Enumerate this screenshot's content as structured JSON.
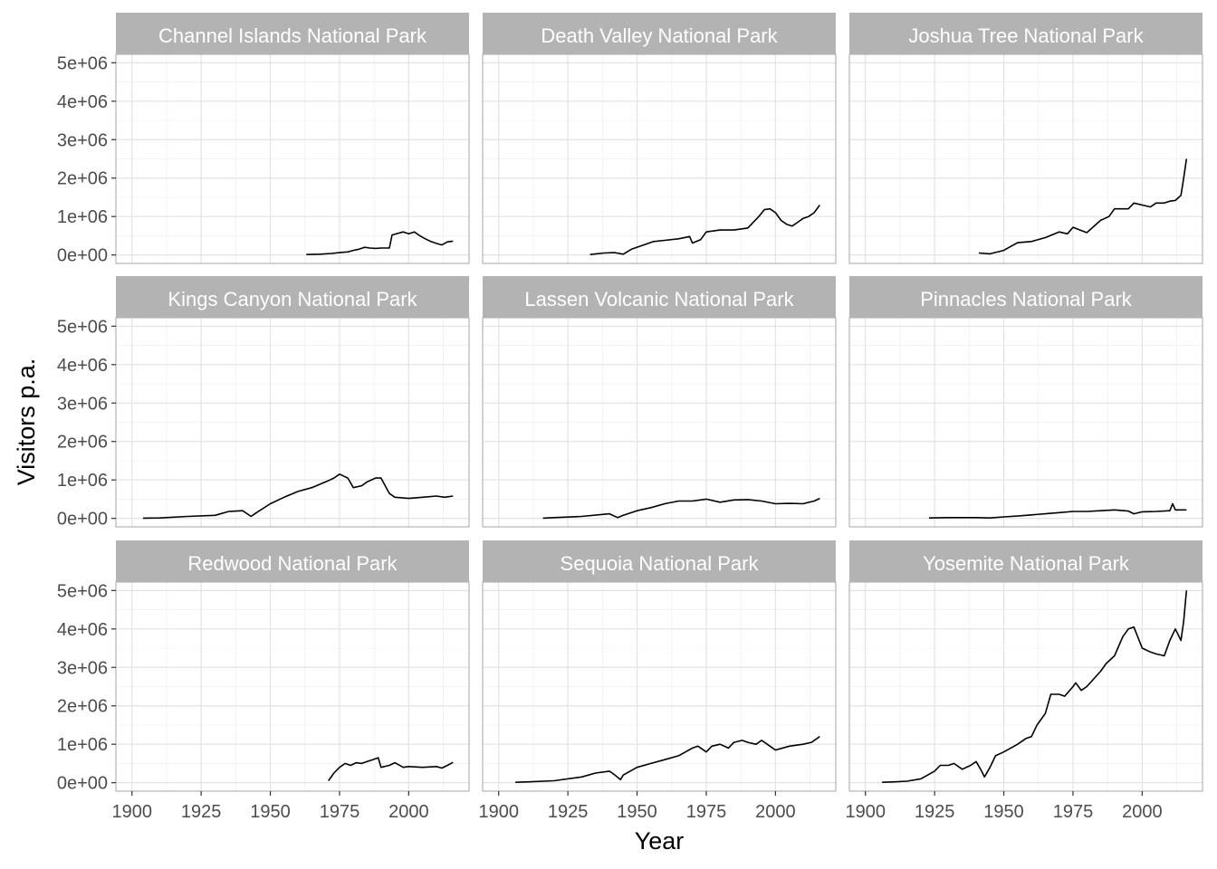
{
  "chart_data": {
    "type": "line",
    "layout": "facet-grid-3x3",
    "xlabel": "Year",
    "ylabel": "Visitors p.a.",
    "xlim": [
      1900,
      2016
    ],
    "ylim": [
      0,
      5000000
    ],
    "x_ticks": [
      1900,
      1925,
      1950,
      1975,
      2000
    ],
    "x_tick_labels": [
      "1900",
      "1925",
      "1950",
      "1975",
      "2000"
    ],
    "y_ticks": [
      0,
      1000000,
      2000000,
      3000000,
      4000000,
      5000000
    ],
    "y_tick_labels": [
      "0e+00",
      "1e+06",
      "2e+06",
      "3e+06",
      "4e+06",
      "5e+06"
    ],
    "grid": true,
    "line_color": "#000000",
    "strip_color": "#b3b3b3",
    "panels": [
      {
        "name": "Channel Islands National Park",
        "x": [
          1963,
          1968,
          1972,
          1975,
          1978,
          1980,
          1982,
          1984,
          1986,
          1988,
          1990,
          1993,
          1994,
          1996,
          1998,
          2000,
          2002,
          2004,
          2006,
          2008,
          2010,
          2012,
          2014,
          2016
        ],
        "y": [
          10000,
          20000,
          40000,
          60000,
          80000,
          120000,
          150000,
          200000,
          180000,
          170000,
          180000,
          180000,
          520000,
          560000,
          600000,
          550000,
          600000,
          500000,
          420000,
          350000,
          300000,
          260000,
          340000,
          360000
        ]
      },
      {
        "name": "Death Valley National Park",
        "x": [
          1933,
          1938,
          1942,
          1945,
          1948,
          1952,
          1956,
          1960,
          1965,
          1969,
          1970,
          1973,
          1975,
          1980,
          1985,
          1990,
          1994,
          1996,
          1998,
          2000,
          2002,
          2004,
          2006,
          2008,
          2010,
          2012,
          2014,
          2016
        ],
        "y": [
          10000,
          50000,
          60000,
          20000,
          150000,
          250000,
          350000,
          380000,
          420000,
          480000,
          310000,
          400000,
          600000,
          650000,
          650000,
          700000,
          1000000,
          1180000,
          1200000,
          1100000,
          900000,
          800000,
          750000,
          850000,
          950000,
          1000000,
          1100000,
          1300000
        ]
      },
      {
        "name": "Joshua Tree National Park",
        "x": [
          1941,
          1945,
          1950,
          1955,
          1960,
          1965,
          1970,
          1973,
          1975,
          1980,
          1985,
          1988,
          1990,
          1995,
          1997,
          2000,
          2003,
          2005,
          2008,
          2010,
          2012,
          2014,
          2015,
          2016
        ],
        "y": [
          50000,
          30000,
          120000,
          320000,
          350000,
          450000,
          600000,
          550000,
          720000,
          580000,
          900000,
          1000000,
          1200000,
          1200000,
          1350000,
          1300000,
          1250000,
          1350000,
          1350000,
          1400000,
          1420000,
          1550000,
          2000000,
          2500000
        ]
      },
      {
        "name": "Kings Canyon National Park",
        "x": [
          1904,
          1910,
          1920,
          1930,
          1935,
          1940,
          1943,
          1945,
          1950,
          1955,
          1960,
          1965,
          1970,
          1973,
          1975,
          1978,
          1980,
          1983,
          1985,
          1988,
          1990,
          1993,
          1995,
          2000,
          2005,
          2010,
          2013,
          2016
        ],
        "y": [
          5000,
          10000,
          50000,
          80000,
          180000,
          200000,
          50000,
          150000,
          380000,
          550000,
          700000,
          800000,
          950000,
          1050000,
          1150000,
          1050000,
          800000,
          850000,
          950000,
          1050000,
          1050000,
          650000,
          550000,
          520000,
          550000,
          580000,
          550000,
          580000
        ]
      },
      {
        "name": "Lassen Volcanic National Park",
        "x": [
          1916,
          1920,
          1930,
          1940,
          1943,
          1945,
          1950,
          1955,
          1960,
          1965,
          1970,
          1975,
          1980,
          1985,
          1990,
          1995,
          2000,
          2005,
          2010,
          2014,
          2016
        ],
        "y": [
          5000,
          20000,
          50000,
          120000,
          20000,
          80000,
          200000,
          280000,
          380000,
          450000,
          450000,
          500000,
          420000,
          480000,
          490000,
          450000,
          380000,
          390000,
          380000,
          450000,
          520000
        ]
      },
      {
        "name": "Pinnacles National Park",
        "x": [
          1923,
          1930,
          1940,
          1945,
          1950,
          1955,
          1960,
          1965,
          1970,
          1975,
          1980,
          1985,
          1990,
          1995,
          1997,
          2000,
          2005,
          2010,
          2011,
          2012,
          2016
        ],
        "y": [
          10000,
          20000,
          20000,
          10000,
          40000,
          60000,
          90000,
          120000,
          150000,
          180000,
          180000,
          200000,
          220000,
          190000,
          120000,
          170000,
          180000,
          200000,
          380000,
          220000,
          220000
        ]
      },
      {
        "name": "Redwood National Park",
        "x": [
          1971,
          1973,
          1975,
          1977,
          1979,
          1981,
          1983,
          1985,
          1987,
          1989,
          1990,
          1993,
          1995,
          1998,
          2000,
          2005,
          2010,
          2012,
          2014,
          2016
        ],
        "y": [
          50000,
          250000,
          400000,
          500000,
          450000,
          520000,
          500000,
          550000,
          600000,
          650000,
          400000,
          450000,
          520000,
          400000,
          420000,
          400000,
          420000,
          380000,
          450000,
          530000
        ]
      },
      {
        "name": "Sequoia National Park",
        "x": [
          1906,
          1910,
          1920,
          1930,
          1935,
          1940,
          1942,
          1944,
          1945,
          1950,
          1955,
          1960,
          1965,
          1970,
          1972,
          1975,
          1977,
          1980,
          1983,
          1985,
          1988,
          1990,
          1993,
          1995,
          1998,
          2000,
          2005,
          2010,
          2013,
          2016
        ],
        "y": [
          10000,
          20000,
          50000,
          150000,
          250000,
          300000,
          200000,
          80000,
          200000,
          400000,
          500000,
          600000,
          700000,
          900000,
          950000,
          800000,
          950000,
          1000000,
          900000,
          1050000,
          1100000,
          1050000,
          1000000,
          1100000,
          950000,
          850000,
          950000,
          1000000,
          1050000,
          1200000
        ]
      },
      {
        "name": "Yosemite National Park",
        "x": [
          1906,
          1910,
          1915,
          1920,
          1925,
          1927,
          1930,
          1932,
          1935,
          1938,
          1940,
          1942,
          1943,
          1945,
          1947,
          1950,
          1955,
          1958,
          1960,
          1962,
          1965,
          1967,
          1970,
          1972,
          1975,
          1976,
          1978,
          1980,
          1985,
          1987,
          1990,
          1993,
          1995,
          1997,
          2000,
          2003,
          2005,
          2008,
          2010,
          2012,
          2014,
          2015,
          2016
        ],
        "y": [
          10000,
          20000,
          40000,
          100000,
          300000,
          450000,
          450000,
          500000,
          350000,
          450000,
          550000,
          300000,
          150000,
          400000,
          700000,
          800000,
          1000000,
          1150000,
          1200000,
          1500000,
          1800000,
          2300000,
          2300000,
          2250000,
          2500000,
          2600000,
          2400000,
          2500000,
          2900000,
          3100000,
          3300000,
          3800000,
          4000000,
          4050000,
          3500000,
          3400000,
          3350000,
          3300000,
          3700000,
          4000000,
          3700000,
          4200000,
          5000000
        ]
      }
    ]
  }
}
